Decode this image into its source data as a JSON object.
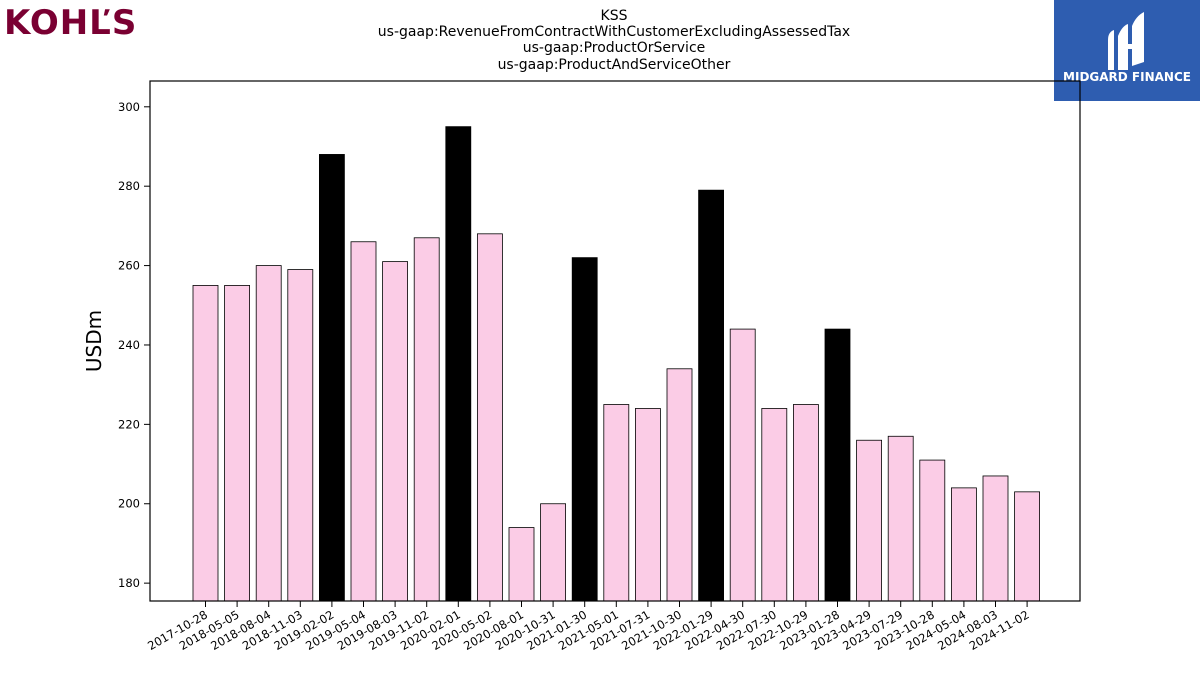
{
  "logos": {
    "left_text": "KOHĽS",
    "left_color": "#7a0032",
    "right_text": "MIDGARD FINANCE",
    "right_bg": "#2e5db0",
    "right_icon": "midgard-m-icon"
  },
  "chart_data": {
    "type": "bar",
    "title_lines": [
      "KSS",
      "us-gaap:RevenueFromContractWithCustomerExcludingAssessedTax",
      "us-gaap:ProductOrService",
      "us-gaap:ProductAndServiceOther"
    ],
    "xlabel": "",
    "ylabel": "USDm",
    "ylim": [
      175.5,
      306.5
    ],
    "yticks": [
      180,
      200,
      220,
      240,
      260,
      280,
      300
    ],
    "categories": [
      "2017-10-28",
      "2018-05-05",
      "2018-08-04",
      "2018-11-03",
      "2019-02-02",
      "2019-05-04",
      "2019-08-03",
      "2019-11-02",
      "2020-02-01",
      "2020-05-02",
      "2020-08-01",
      "2020-10-31",
      "2021-01-30",
      "2021-05-01",
      "2021-07-31",
      "2021-10-30",
      "2022-01-29",
      "2022-04-30",
      "2022-07-30",
      "2022-10-29",
      "2023-01-28",
      "2023-04-29",
      "2023-07-29",
      "2023-10-28",
      "2024-05-04",
      "2024-08-03",
      "2024-11-02"
    ],
    "values": [
      255,
      255,
      260,
      259,
      288,
      266,
      261,
      267,
      295,
      268,
      194,
      200,
      262,
      225,
      224,
      234,
      279,
      244,
      224,
      225,
      244,
      216,
      217,
      211,
      204,
      207,
      203
    ],
    "highlight": [
      false,
      false,
      false,
      false,
      true,
      false,
      false,
      false,
      true,
      false,
      false,
      false,
      true,
      false,
      false,
      false,
      true,
      false,
      false,
      false,
      true,
      false,
      false,
      false,
      false,
      false,
      false
    ],
    "colors": {
      "normal": "#fbcce6",
      "highlight": "#000000",
      "edge": "#000000"
    },
    "grid": false,
    "legend": "none"
  }
}
